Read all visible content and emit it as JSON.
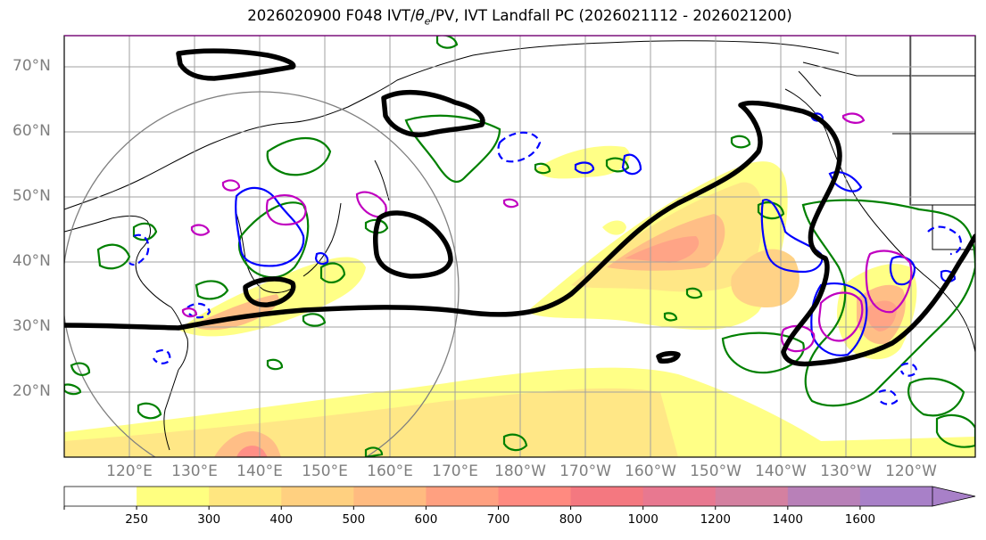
{
  "title": {
    "prefix": "2026020900 F048 IVT/",
    "theta": "θ",
    "sub": "e",
    "suffix": "/PV, IVT Landfall PC (2026021112 - 2026021200)"
  },
  "map": {
    "lat_labels": [
      "70°N",
      "60°N",
      "50°N",
      "40°N",
      "30°N",
      "20°N"
    ],
    "lon_labels": [
      "120°E",
      "130°E",
      "140°E",
      "150°E",
      "160°E",
      "170°E",
      "180°W",
      "170°W",
      "160°W",
      "150°W",
      "140°W",
      "130°W",
      "120°W"
    ],
    "colors": {
      "ivt_shading": [
        "#ffff80",
        "#ffe680",
        "#ffd080",
        "#ffbb80",
        "#ffa080",
        "#ff8a80",
        "#f07a8a",
        "#d880a0",
        "#b080c0"
      ],
      "black_contour": "#000000",
      "green_contour": "#008000",
      "blue_contour": "#0000ff",
      "magenta_contour": "#c000c0",
      "circle": "#808080",
      "grid": "#a0a0a0"
    }
  },
  "colorbar": {
    "ticks": [
      "250",
      "300",
      "400",
      "500",
      "600",
      "700",
      "800",
      "1000",
      "1200",
      "1400",
      "1600"
    ],
    "colors": [
      "#ffffff",
      "#ffff80",
      "#ffe680",
      "#ffd080",
      "#ffbb80",
      "#ffa080",
      "#ff8a80",
      "#f47880",
      "#e87890",
      "#d480a0",
      "#b880b8",
      "#a880c8"
    ]
  }
}
